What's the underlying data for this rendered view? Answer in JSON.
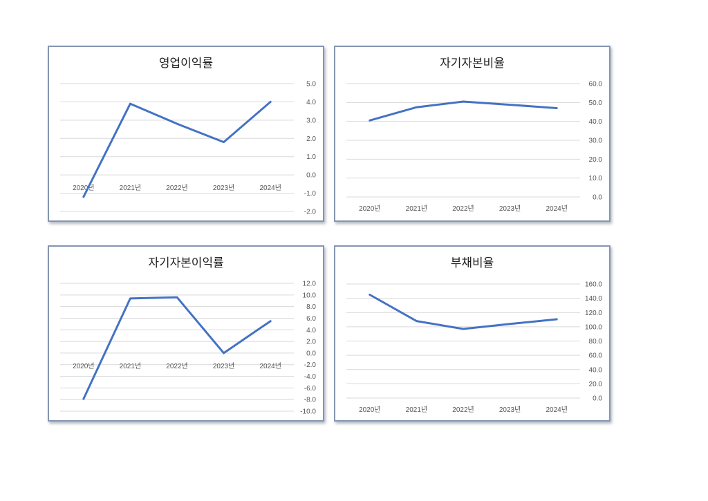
{
  "page": {
    "background": "#ffffff"
  },
  "colors": {
    "line": "#4472c4",
    "grid": "#d9d9d9",
    "border": "#8496b0"
  },
  "chart_data": [
    {
      "type": "line",
      "title": "영업이익률",
      "categories": [
        "2020년",
        "2021년",
        "2022년",
        "2023년",
        "2024년"
      ],
      "values": [
        -1.2,
        3.9,
        2.8,
        1.8,
        4.0
      ],
      "ylim": [
        -2.0,
        5.0
      ],
      "yticks": [
        "5.0",
        "4.0",
        "3.0",
        "2.0",
        "1.0",
        "0.0",
        "-1.0",
        "-2.0"
      ],
      "y_axis_side": "right",
      "grid": true,
      "legend": "none"
    },
    {
      "type": "line",
      "title": "자기자본비율",
      "categories": [
        "2020년",
        "2021년",
        "2022년",
        "2023년",
        "2024년"
      ],
      "values": [
        40.5,
        47.5,
        50.5,
        48.8,
        47.0
      ],
      "ylim": [
        0,
        60
      ],
      "yticks": [
        "60.0",
        "50.0",
        "40.0",
        "30.0",
        "20.0",
        "10.0",
        "0.0"
      ],
      "y_axis_side": "right",
      "grid": true,
      "legend": "none"
    },
    {
      "type": "line",
      "title": "자기자본이익률",
      "categories": [
        "2020년",
        "2021년",
        "2022년",
        "2023년",
        "2024년"
      ],
      "values": [
        -7.9,
        9.4,
        9.6,
        0.0,
        5.5
      ],
      "ylim": [
        -10,
        12
      ],
      "yticks": [
        "12.0",
        "10.0",
        "8.0",
        "6.0",
        "4.0",
        "2.0",
        "0.0",
        "-2.0",
        "-4.0",
        "-6.0",
        "-8.0",
        "-10.0"
      ],
      "y_axis_side": "right",
      "grid": true,
      "legend": "none"
    },
    {
      "type": "line",
      "title": "부채비율",
      "categories": [
        "2020년",
        "2021년",
        "2022년",
        "2023년",
        "2024년"
      ],
      "values": [
        145.0,
        108.0,
        97.0,
        104.0,
        110.5
      ],
      "ylim": [
        0,
        160
      ],
      "yticks": [
        "160.0",
        "140.0",
        "120.0",
        "100.0",
        "80.0",
        "60.0",
        "40.0",
        "20.0",
        "0.0"
      ],
      "y_axis_side": "right",
      "grid": true,
      "legend": "none"
    }
  ]
}
